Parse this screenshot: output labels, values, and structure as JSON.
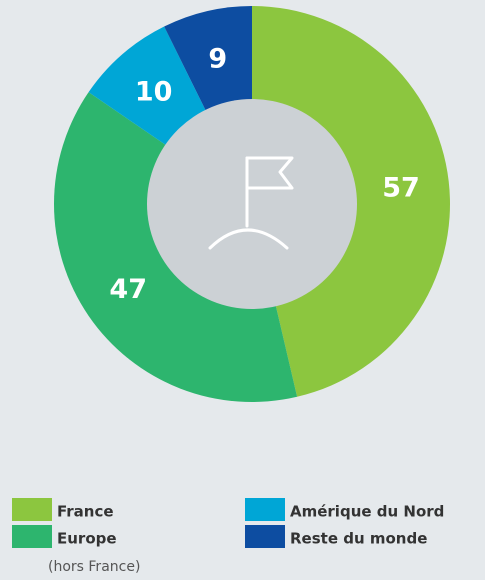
{
  "chart_data": {
    "type": "donut",
    "categories": [
      "France",
      "Europe",
      "Amérique du Nord",
      "Reste du monde"
    ],
    "values": [
      57,
      47,
      10,
      9
    ],
    "colors": [
      "#8cc63f",
      "#2db56e",
      "#00a6d6",
      "#0d4da1"
    ],
    "category_note": "(hors France)"
  }
}
